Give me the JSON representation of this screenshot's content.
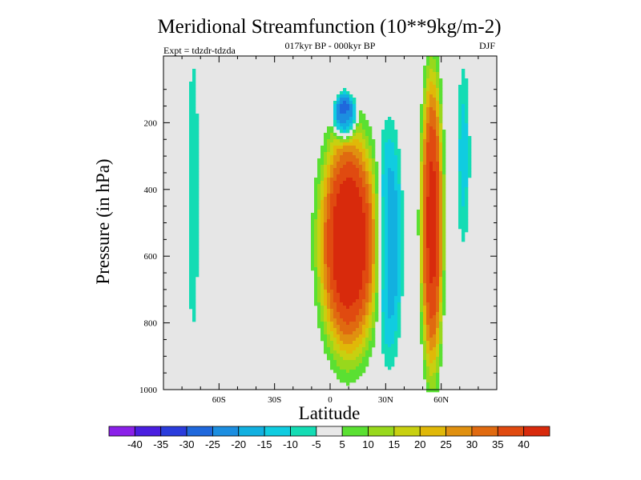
{
  "chart_data": {
    "type": "contour",
    "title": "Meridional Streamfunction (10**9kg/m-2)",
    "subtitle_center": "017kyr BP - 000kyr BP",
    "subtitle_left": "Expt = tdzdr-tdzda",
    "subtitle_right": "DJF",
    "xlabel": "Latitude",
    "ylabel": "Pressure (in hPa)",
    "xlim": [
      -90,
      90
    ],
    "ylim": [
      1000,
      0
    ],
    "xticks": [
      {
        "value": -60,
        "label": "60S"
      },
      {
        "value": -30,
        "label": "30S"
      },
      {
        "value": 0,
        "label": "0"
      },
      {
        "value": 30,
        "label": "30N"
      },
      {
        "value": 60,
        "label": "60N"
      }
    ],
    "yticks": [
      {
        "value": 200,
        "label": "200"
      },
      {
        "value": 400,
        "label": "400"
      },
      {
        "value": 600,
        "label": "600"
      },
      {
        "value": 800,
        "label": "800"
      },
      {
        "value": 1000,
        "label": "1000"
      }
    ],
    "levels": [
      -40,
      -35,
      -30,
      -25,
      -20,
      -15,
      -10,
      -5,
      5,
      10,
      15,
      20,
      25,
      30,
      35,
      40
    ],
    "level_labels": [
      "-40",
      "-35",
      "-30",
      "-25",
      "-20",
      "-15",
      "-10",
      "-5",
      "5",
      "10",
      "15",
      "20",
      "25",
      "30",
      "35",
      "40"
    ],
    "colors": [
      "#8a20e8",
      "#4a1ee0",
      "#2a3cdc",
      "#1f68dc",
      "#1c8ee0",
      "#12b0e0",
      "#10cce0",
      "#14dcb4",
      "#e8e8e8",
      "#5ae032",
      "#98d81c",
      "#c8d010",
      "#e0b808",
      "#e09010",
      "#e06a10",
      "#e04a10",
      "#d82a0c"
    ],
    "panel_color": "#e6e6e6",
    "features": [
      {
        "name": "north-tropical-positive-cell",
        "center_lat": 10,
        "center_p": 560,
        "width_lat": 32,
        "depth_p": 680,
        "amplitude": 44
      },
      {
        "name": "northern-midlatitude-positive-column",
        "center_lat": 55,
        "center_p": 500,
        "width_lat": 12,
        "depth_p": 900,
        "amplitude": 41
      },
      {
        "name": "upper-tropical-negative-cell",
        "center_lat": 8,
        "center_p": 180,
        "width_lat": 12,
        "depth_p": 140,
        "amplitude": -34
      },
      {
        "name": "subtropical-negative-band",
        "center_lat": 32,
        "center_p": 560,
        "width_lat": 14,
        "depth_p": 700,
        "amplitude": -18
      },
      {
        "name": "southern-high-latitude-negative-strip",
        "center_lat": -74,
        "center_p": 420,
        "width_lat": 6,
        "depth_p": 820,
        "amplitude": -10
      },
      {
        "name": "polar-negative-strip",
        "center_lat": 72,
        "center_p": 300,
        "width_lat": 7,
        "depth_p": 540,
        "amplitude": -11
      }
    ]
  }
}
